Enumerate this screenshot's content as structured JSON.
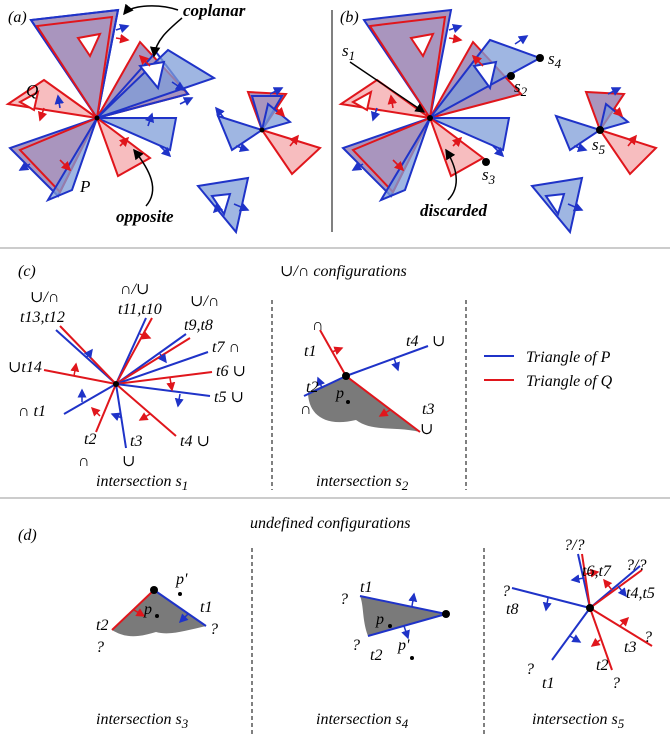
{
  "panels": {
    "a": {
      "label": "(a)",
      "annotations": {
        "coplanar": "coplanar",
        "opposite": "opposite",
        "Q": "Q",
        "P": "P"
      }
    },
    "b": {
      "label": "(b)",
      "annotations": {
        "s1": "s",
        "s1_sub": "1",
        "s2": "s",
        "s2_sub": "2",
        "s3": "s",
        "s3_sub": "3",
        "s4": "s",
        "s4_sub": "4",
        "s5": "s",
        "s5_sub": "5",
        "discarded": "discarded"
      }
    },
    "c": {
      "label": "(c)",
      "title": "∪/∩ configurations",
      "legend": [
        {
          "text": "Triangle of P",
          "color": "#1f33c8"
        },
        {
          "text": "Triangle of Q",
          "color": "#e0161c"
        }
      ],
      "s1_labels": {
        "t13t12": "∪/∩",
        "t13": "t13,t12",
        "t11t10": "∩/∪",
        "t11": "t11,t10",
        "t9t8": "∪/∩",
        "t9": "t9,t8",
        "t7": "t7 ∩",
        "t6": "t6 ∪",
        "t5": "t5 ∪",
        "t4": "t4 ∪",
        "t14": "∪t14",
        "t1": "∩ t1",
        "t2": "t2",
        "t3": "t3",
        "t2sym": "∩",
        "t3sym": "∪"
      },
      "s2_labels": {
        "t1sym": "∩",
        "t1": "t1",
        "t4": "t4",
        "t4sym": "∪",
        "t2": "t2",
        "t2sym": "∩",
        "p": "p",
        "t3": "t3",
        "t3sym": "∪"
      },
      "captions": {
        "s1": "intersection s",
        "s1_sub": "1",
        "s2": "intersection s",
        "s2_sub": "2"
      }
    },
    "d": {
      "label": "(d)",
      "title": "undefined configurations",
      "s3_labels": {
        "t2": "t2",
        "q1": "?",
        "p": "p",
        "pp": "p'",
        "t1": "t1",
        "q2": "?"
      },
      "s4_labels": {
        "q1": "?",
        "t1": "t1",
        "p": "p",
        "q2": "?",
        "t2": "t2",
        "pp": "p'"
      },
      "s5_labels": {
        "qq1": "?/?",
        "t6t7": "t6,t7",
        "qq2": "?/?",
        "t4t5": "t4,t5",
        "q8": "?",
        "t8": "t8",
        "q3": "?",
        "t3": "t3",
        "q1": "?",
        "t1": "t1",
        "t2": "t2",
        "q2": "?"
      },
      "captions": {
        "s3": "intersection s",
        "s3_sub": "3",
        "s4": "intersection s",
        "s4_sub": "4",
        "s5": "intersection s",
        "s5_sub": "5"
      }
    }
  },
  "colors": {
    "triangle_P": "#1f33c8",
    "triangle_Q": "#e0161c",
    "region": "#7a7a7a"
  }
}
